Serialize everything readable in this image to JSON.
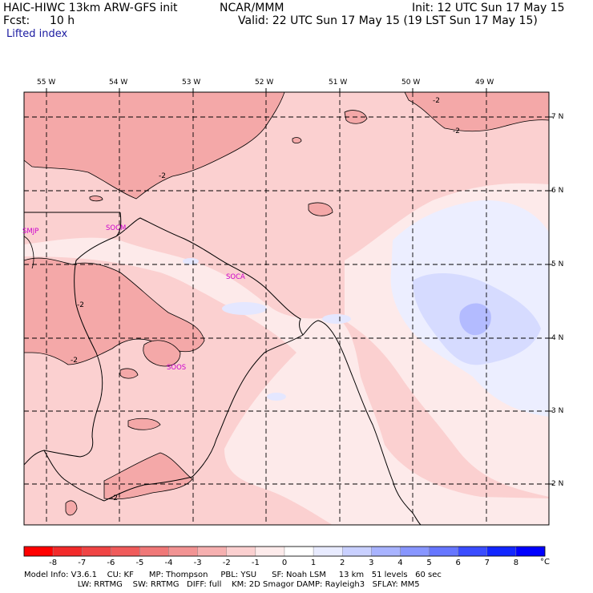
{
  "header": {
    "model": "HAIC-HIWC 13km ARW-GFS init",
    "org": "NCAR/MMM",
    "fcst_label": "Fcst:",
    "fcst_value": "10 h",
    "init": "Init: 12 UTC Sun 17 May 15",
    "valid": "Valid: 22 UTC Sun 17 May 15 (19 LST Sun 17 May 15)",
    "field": "Lifted index"
  },
  "map": {
    "longitudes": [
      "55 W",
      "54 W",
      "53 W",
      "52 W",
      "51 W",
      "50 W",
      "49 W"
    ],
    "latitudes": [
      "7 N",
      "6 N",
      "5 N",
      "4 N",
      "3 N",
      "2 N"
    ],
    "stations": [
      "SMJP",
      "SOCM",
      "SOCA",
      "SOOS"
    ],
    "contour_labels": [
      "-2",
      "-2",
      "-2",
      "-2",
      "-2",
      "-2"
    ]
  },
  "colorbar": {
    "labels": [
      "-8",
      "-7",
      "-6",
      "-5",
      "-4",
      "-3",
      "-2",
      "-1",
      "0",
      "1",
      "2",
      "3",
      "4",
      "5",
      "6",
      "7",
      "8"
    ],
    "unit": "°C",
    "colors": [
      "#ff0000",
      "#f22a2a",
      "#f04444",
      "#f05b5b",
      "#f07878",
      "#f29393",
      "#f6b0b0",
      "#fbd0d0",
      "#fdebeb",
      "#ffffff",
      "#e8ebff",
      "#c9d0ff",
      "#a8b3ff",
      "#8896ff",
      "#6676ff",
      "#3a4cff",
      "#1226ff",
      "#0000ff"
    ]
  },
  "footer": {
    "line1": "Model Info: V3.6.1    CU: KF      MP: Thompson     PBL: YSU      SF: Noah LSM     13 km   51 levels   60 sec",
    "line2": "                     LW: RRTMG    SW: RRTMG   DIFF: full    KM: 2D Smagor DAMP: Rayleigh3   SFLAY: MM5"
  }
}
